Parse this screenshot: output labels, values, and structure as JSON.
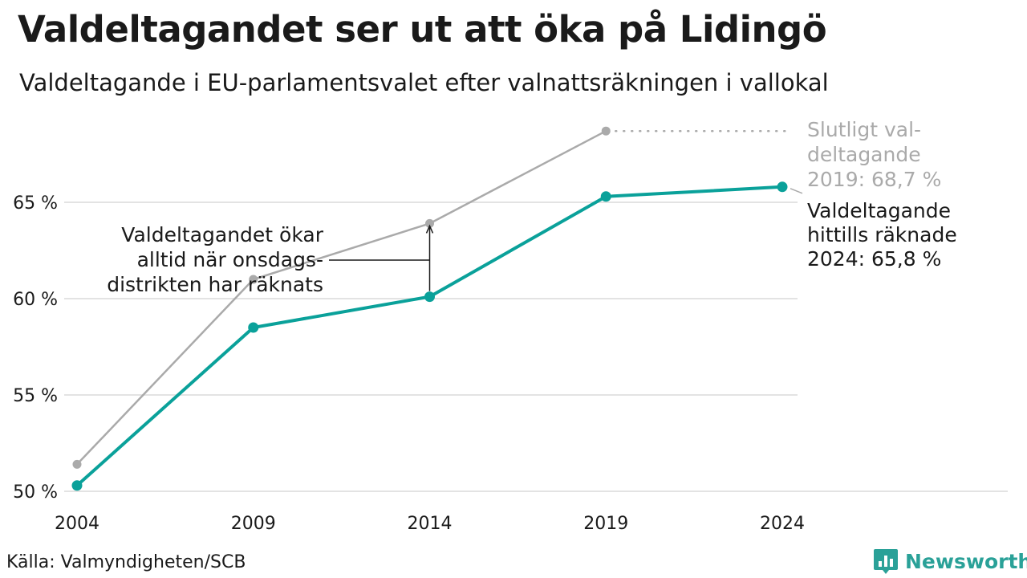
{
  "title": "Valdeltagandet ser ut att öka på Lidingö",
  "subtitle": "Valdeltagande i EU-parlamentsvalet efter valnattsräkningen i vallokal",
  "source": "Källa: Valmyndigheten/SCB",
  "brand": {
    "name": "Newsworthy",
    "icon": "bar-chart-speech-bubble-icon",
    "color": "#2aa198"
  },
  "chart_data": {
    "type": "line",
    "x": [
      2004,
      2009,
      2014,
      2019,
      2024
    ],
    "xticks": [
      "2004",
      "2009",
      "2014",
      "2019",
      "2024"
    ],
    "yticks": [
      "50 %",
      "55 %",
      "60 %",
      "65 %"
    ],
    "ytick_values": [
      50,
      55,
      60,
      65
    ],
    "ylim": [
      49.5,
      69.5
    ],
    "grid": true,
    "series": [
      {
        "key": "final",
        "values": [
          51.4,
          61.0,
          63.9,
          68.7,
          null
        ],
        "color": "#aaaaaa"
      },
      {
        "key": "election_night",
        "values": [
          50.3,
          58.5,
          60.1,
          65.3,
          65.8
        ],
        "color": "#0aa19a"
      }
    ],
    "annotations": {
      "final_2019": {
        "lines": [
          "Slutligt val-",
          "deltagande",
          "2019: 68,7 %"
        ],
        "color": "#aaaaaa"
      },
      "current_2024": {
        "lines": [
          "Valdeltagande",
          "hittills räknade",
          "2024: 65,8 %"
        ],
        "color": "#1a1a1a"
      },
      "increase_note": {
        "lines": [
          "Valdeltagandet ökar",
          "alltid när onsdags-",
          "distrikten har räknats"
        ],
        "color": "#1a1a1a"
      }
    }
  }
}
